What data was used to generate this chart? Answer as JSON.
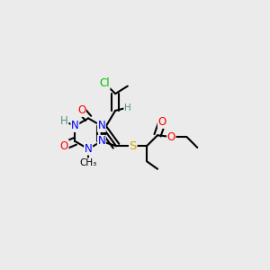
{
  "bg_color": "#ebebeb",
  "atom_colors": {
    "N": "#0000ff",
    "O": "#ff0000",
    "S": "#ccaa00",
    "Cl": "#00bb00",
    "C": "#000000",
    "H": "#5a9090"
  },
  "bond_color": "#000000",
  "lw": 1.5,
  "fs": 8.5
}
